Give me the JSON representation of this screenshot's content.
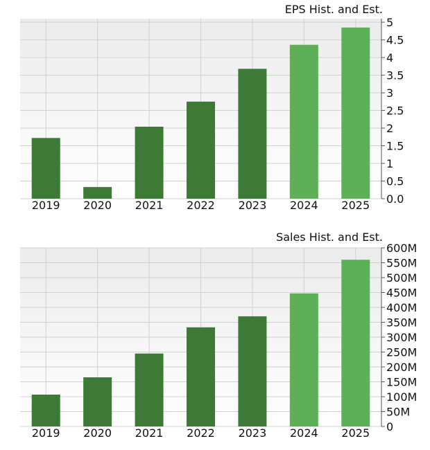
{
  "chart_data": [
    {
      "type": "bar",
      "title": "EPS Hist. and Est.",
      "categories": [
        "2019",
        "2020",
        "2021",
        "2022",
        "2023",
        "2024",
        "2025"
      ],
      "values": [
        1.72,
        0.33,
        2.04,
        2.75,
        3.68,
        4.36,
        4.85
      ],
      "estimate_flags": [
        false,
        false,
        false,
        false,
        false,
        true,
        true
      ],
      "ylim": [
        0,
        5.1
      ],
      "yticks": [
        0,
        0.5,
        1,
        1.5,
        2,
        2.5,
        3,
        3.5,
        4,
        4.5,
        5
      ],
      "ytick_labels": [
        "0.0",
        "0.5",
        "1",
        "1.5",
        "2",
        "2.5",
        "3",
        "3.5",
        "4",
        "4.5",
        "5"
      ],
      "grid": true,
      "colors": {
        "historical": "#3d7a35",
        "estimate": "#5fae58",
        "plot_top": "#ebebeb",
        "plot_bottom": "#ffffff",
        "grid": "#d0d0d0",
        "axis": "#555555"
      }
    },
    {
      "type": "bar",
      "title": "Sales Hist. and Est.",
      "categories": [
        "2019",
        "2020",
        "2021",
        "2022",
        "2023",
        "2024",
        "2025"
      ],
      "values": [
        107000000,
        165000000,
        245000000,
        333000000,
        370000000,
        447000000,
        560000000
      ],
      "estimate_flags": [
        false,
        false,
        false,
        false,
        false,
        true,
        true
      ],
      "ylim": [
        0,
        600000000
      ],
      "yticks": [
        0,
        50000000,
        100000000,
        150000000,
        200000000,
        250000000,
        300000000,
        350000000,
        400000000,
        450000000,
        500000000,
        550000000,
        600000000
      ],
      "ytick_labels": [
        "0",
        "50M",
        "100M",
        "150M",
        "200M",
        "250M",
        "300M",
        "350M",
        "400M",
        "450M",
        "500M",
        "550M",
        "600M"
      ],
      "grid": true,
      "colors": {
        "historical": "#3d7a35",
        "estimate": "#5fae58",
        "plot_top": "#ebebeb",
        "plot_bottom": "#ffffff",
        "grid": "#d0d0d0",
        "axis": "#555555"
      }
    }
  ]
}
